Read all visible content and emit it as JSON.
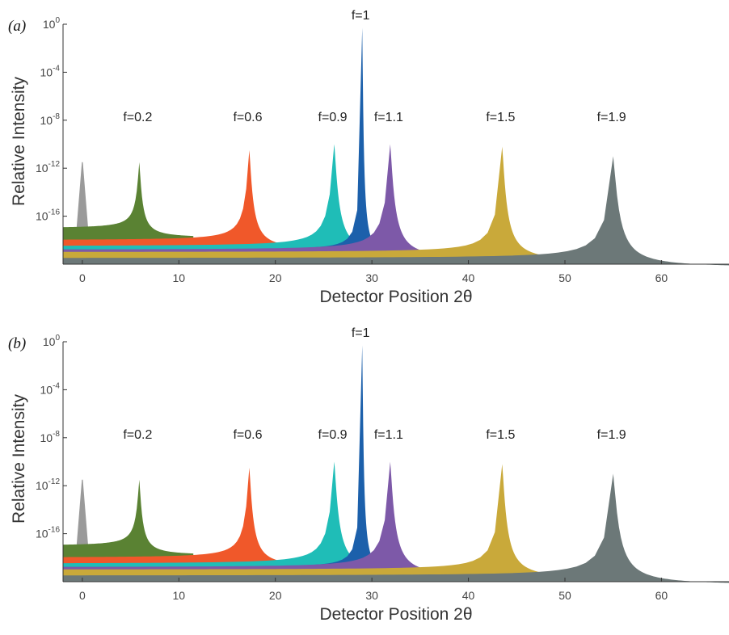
{
  "chart_data": [
    {
      "type": "area",
      "panel_label": "(a)",
      "xlabel": "Detector Position 2θ",
      "ylabel": "Relative Intensity",
      "x_ticks": [
        "0",
        "10",
        "20",
        "30",
        "40",
        "50",
        "60"
      ],
      "y_ticks": [
        {
          "base": "10",
          "exp": "0"
        },
        {
          "base": "10",
          "exp": "-4"
        },
        {
          "base": "10",
          "exp": "-8"
        },
        {
          "base": "10",
          "exp": "-12"
        },
        {
          "base": "10",
          "exp": "-16"
        }
      ],
      "xlim": [
        -2,
        67
      ],
      "ylim_log10": [
        -20,
        0
      ],
      "y_scale": "log",
      "series": [
        {
          "name": "f=0.2",
          "peak_x": 5.9,
          "peak_log10": -11.5,
          "floor_log10": -17,
          "width": 4,
          "right_extent": 11.5,
          "color": "#5a8233"
        },
        {
          "name": "f=0.6",
          "peak_x": 17.3,
          "peak_log10": -10.5,
          "floor_log10": -18,
          "width": 5,
          "right_extent": 22,
          "color": "#f0582a"
        },
        {
          "name": "f=0.9",
          "peak_x": 26.1,
          "peak_log10": -10,
          "floor_log10": -18.5,
          "width": 6,
          "right_extent": 28,
          "color": "#1fbdb7"
        },
        {
          "name": "f=1",
          "peak_x": 29.0,
          "peak_log10": -0.3,
          "floor_log10": -18.8,
          "width": 2,
          "right_extent": 32,
          "color": "#1c60ab"
        },
        {
          "name": "f=1.1",
          "peak_x": 31.9,
          "peak_log10": -10,
          "floor_log10": -18.8,
          "width": 6,
          "right_extent": 38,
          "color": "#7d59a8"
        },
        {
          "name": "f=1.5",
          "peak_x": 43.5,
          "peak_log10": -10.2,
          "floor_log10": -19,
          "width": 6,
          "right_extent": 49,
          "color": "#c9a93a"
        },
        {
          "name": "f=1.9",
          "peak_x": 55.0,
          "peak_log10": -11,
          "floor_log10": -19.5,
          "width": 8,
          "right_extent": 67,
          "color": "#6c7878"
        }
      ]
    },
    {
      "type": "area",
      "panel_label": "(b)",
      "xlabel": "Detector Position 2θ",
      "ylabel": "Relative Intensity",
      "x_ticks": [
        "0",
        "10",
        "20",
        "30",
        "40",
        "50",
        "60"
      ],
      "y_ticks": [
        {
          "base": "10",
          "exp": "0"
        },
        {
          "base": "10",
          "exp": "-4"
        },
        {
          "base": "10",
          "exp": "-8"
        },
        {
          "base": "10",
          "exp": "-12"
        },
        {
          "base": "10",
          "exp": "-16"
        }
      ],
      "xlim": [
        -2,
        67
      ],
      "ylim_log10": [
        -20,
        0
      ],
      "y_scale": "log",
      "series": [
        {
          "name": "f=0.2",
          "peak_x": 5.9,
          "peak_log10": -11.5,
          "floor_log10": -17,
          "width": 4,
          "right_extent": 11.5,
          "color": "#5a8233"
        },
        {
          "name": "f=0.6",
          "peak_x": 17.3,
          "peak_log10": -10.5,
          "floor_log10": -18,
          "width": 5,
          "right_extent": 22,
          "color": "#f0582a"
        },
        {
          "name": "f=0.9",
          "peak_x": 26.1,
          "peak_log10": -10,
          "floor_log10": -18.5,
          "width": 6,
          "right_extent": 28,
          "color": "#1fbdb7"
        },
        {
          "name": "f=1",
          "peak_x": 29.0,
          "peak_log10": -0.3,
          "floor_log10": -18.8,
          "width": 2,
          "right_extent": 32,
          "color": "#1c60ab"
        },
        {
          "name": "f=1.1",
          "peak_x": 31.9,
          "peak_log10": -10,
          "floor_log10": -18.8,
          "width": 6,
          "right_extent": 38,
          "color": "#7d59a8"
        },
        {
          "name": "f=1.5",
          "peak_x": 43.5,
          "peak_log10": -10.2,
          "floor_log10": -19,
          "width": 6,
          "right_extent": 49,
          "color": "#c9a93a"
        },
        {
          "name": "f=1.9",
          "peak_x": 55.0,
          "peak_log10": -11,
          "floor_log10": -19.5,
          "width": 8,
          "right_extent": 67,
          "color": "#6c7878"
        }
      ]
    }
  ]
}
